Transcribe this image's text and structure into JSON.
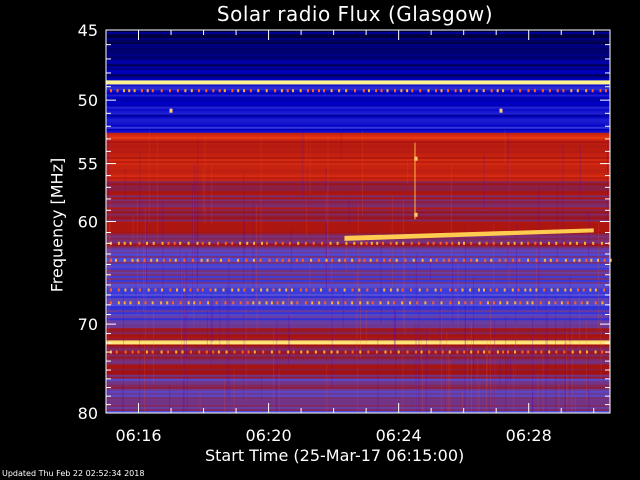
{
  "chart_data": {
    "type": "heatmap",
    "title": "Solar radio Flux (Glasgow)",
    "xlabel": "Start Time (25-Mar-17 06:15:00)",
    "ylabel": "Frequency [MHz]",
    "x_ticks": [
      "06:16",
      "06:20",
      "06:24",
      "06:28"
    ],
    "y_ticks": [
      45,
      50,
      55,
      60,
      70,
      80
    ],
    "y_scale": "log",
    "ylim": [
      45,
      80
    ],
    "colormap": [
      "#000032",
      "#0000c8",
      "#5050e0",
      "#a01010",
      "#e03010",
      "#ffc040",
      "#ffffa0"
    ],
    "bands": [
      {
        "from": 45,
        "to": 46.8,
        "level": 0.05
      },
      {
        "from": 46.8,
        "to": 48.6,
        "level": 0.1
      },
      {
        "from": 48.6,
        "to": 48.9,
        "level": 0.95
      },
      {
        "from": 48.9,
        "to": 49.4,
        "level": 0.2
      },
      {
        "from": 49.4,
        "to": 51.3,
        "level": 0.18
      },
      {
        "from": 51.3,
        "to": 52.6,
        "level": 0.22
      },
      {
        "from": 52.6,
        "to": 53.2,
        "level": 0.62
      },
      {
        "from": 53.2,
        "to": 56.5,
        "level": 0.58
      },
      {
        "from": 56.5,
        "to": 62.5,
        "level": 0.48
      },
      {
        "from": 62.5,
        "to": 65.5,
        "level": 0.36
      },
      {
        "from": 65.5,
        "to": 70.5,
        "level": 0.33
      },
      {
        "from": 70.5,
        "to": 71.8,
        "level": 0.48
      },
      {
        "from": 71.8,
        "to": 72.3,
        "level": 0.95
      },
      {
        "from": 72.3,
        "to": 76,
        "level": 0.45
      },
      {
        "from": 76,
        "to": 80,
        "level": 0.4
      }
    ],
    "burst": {
      "start": "06:22:20",
      "end": "06:30:00",
      "freq_start": 61.5,
      "freq_end": 60.8
    }
  },
  "footer": {
    "updated": "Updated Thu Feb 22 02:52:34 2018"
  }
}
